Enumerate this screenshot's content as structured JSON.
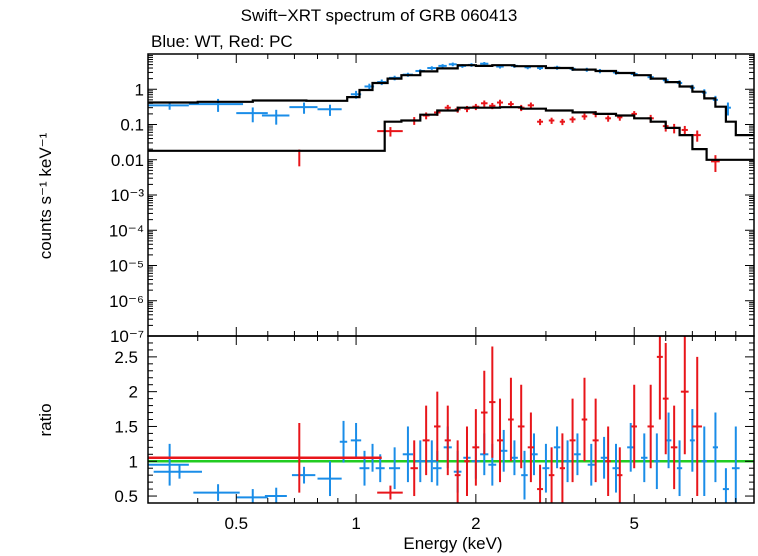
{
  "chart_data": [
    {
      "type": "scatter",
      "panel": "spectrum",
      "title": "Swift−XRT spectrum of GRB 060413",
      "subtitle": "Blue: WT, Red: PC",
      "xlabel": "Energy (keV)",
      "ylabel": "counts s⁻¹ keV⁻¹",
      "xscale": "log",
      "yscale": "log",
      "xlim": [
        0.3,
        10.0
      ],
      "ylim": [
        1e-07,
        10
      ],
      "x_ticks": [
        "0.5",
        "1",
        "2",
        "5"
      ],
      "y_ticks": [
        "1",
        "0.1",
        "0.01",
        "10⁻³",
        "10⁻⁴",
        "10⁻⁵",
        "10⁻⁶",
        "10⁻⁷"
      ],
      "series": [
        {
          "name": "WT",
          "color": "#1a8de8",
          "points": [
            [
              0.34,
              0.35
            ],
            [
              0.45,
              0.38
            ],
            [
              0.55,
              0.21
            ],
            [
              0.63,
              0.18
            ],
            [
              0.74,
              0.31
            ],
            [
              0.86,
              0.27
            ],
            [
              1.0,
              0.72
            ],
            [
              1.08,
              1.2
            ],
            [
              1.16,
              1.6
            ],
            [
              1.25,
              2.1
            ],
            [
              1.35,
              2.6
            ],
            [
              1.45,
              3.3
            ],
            [
              1.55,
              4.0
            ],
            [
              1.65,
              4.6
            ],
            [
              1.75,
              5.1
            ],
            [
              1.85,
              4.6
            ],
            [
              1.95,
              4.9
            ],
            [
              2.1,
              5.3
            ],
            [
              2.3,
              4.4
            ],
            [
              2.5,
              4.6
            ],
            [
              2.7,
              4.2
            ],
            [
              2.9,
              4.0
            ],
            [
              3.2,
              4.1
            ],
            [
              3.5,
              3.8
            ],
            [
              3.8,
              3.6
            ],
            [
              4.1,
              3.3
            ],
            [
              4.5,
              3.0
            ],
            [
              5.0,
              2.7
            ],
            [
              5.5,
              2.2
            ],
            [
              6.0,
              1.8
            ],
            [
              6.5,
              1.5
            ],
            [
              7.0,
              1.1
            ],
            [
              7.5,
              0.8
            ],
            [
              8.0,
              0.5
            ],
            [
              8.6,
              0.3
            ]
          ],
          "xerr": [
            0.04,
            0.07,
            0.05,
            0.05,
            0.06,
            0.06,
            0.03,
            0.03,
            0.03,
            0.04,
            0.04,
            0.04,
            0.04,
            0.04,
            0.04,
            0.04,
            0.04,
            0.05,
            0.05,
            0.05,
            0.05,
            0.05,
            0.06,
            0.06,
            0.06,
            0.07,
            0.08,
            0.1,
            0.1,
            0.1,
            0.1,
            0.1,
            0.1,
            0.12,
            0.15
          ],
          "yerr_frac": [
            0.25,
            0.4,
            0.45,
            0.45,
            0.35,
            0.35,
            0.25,
            0.2,
            0.18,
            0.15,
            0.13,
            0.12,
            0.12,
            0.12,
            0.12,
            0.12,
            0.12,
            0.12,
            0.12,
            0.12,
            0.12,
            0.12,
            0.13,
            0.13,
            0.13,
            0.14,
            0.14,
            0.15,
            0.16,
            0.18,
            0.2,
            0.22,
            0.25,
            0.3,
            0.4
          ]
        },
        {
          "name": "PC",
          "color": "#e8151a",
          "points": [
            [
              0.72,
              0.013
            ],
            [
              1.22,
              0.065
            ],
            [
              1.4,
              0.13
            ],
            [
              1.5,
              0.18
            ],
            [
              1.6,
              0.22
            ],
            [
              1.7,
              0.3
            ],
            [
              1.8,
              0.27
            ],
            [
              1.9,
              0.28
            ],
            [
              2.0,
              0.32
            ],
            [
              2.1,
              0.4
            ],
            [
              2.2,
              0.34
            ],
            [
              2.3,
              0.42
            ],
            [
              2.45,
              0.38
            ],
            [
              2.6,
              0.3
            ],
            [
              2.75,
              0.35
            ],
            [
              2.9,
              0.12
            ],
            [
              3.1,
              0.13
            ],
            [
              3.3,
              0.12
            ],
            [
              3.5,
              0.14
            ],
            [
              3.75,
              0.17
            ],
            [
              4.0,
              0.2
            ],
            [
              4.3,
              0.15
            ],
            [
              4.6,
              0.16
            ],
            [
              5.0,
              0.2
            ],
            [
              5.5,
              0.15
            ],
            [
              6.0,
              0.09
            ],
            [
              6.3,
              0.08
            ],
            [
              6.7,
              0.07
            ],
            [
              7.2,
              0.05
            ],
            [
              8.0,
              0.009
            ]
          ],
          "xerr": [
            0.0,
            0.09,
            0.03,
            0.03,
            0.03,
            0.03,
            0.03,
            0.03,
            0.04,
            0.04,
            0.04,
            0.04,
            0.04,
            0.05,
            0.05,
            0.05,
            0.05,
            0.05,
            0.06,
            0.06,
            0.07,
            0.07,
            0.07,
            0.08,
            0.1,
            0.1,
            0.1,
            0.12,
            0.15,
            0.2
          ],
          "yerr_frac": [
            0.5,
            0.3,
            0.25,
            0.22,
            0.2,
            0.2,
            0.2,
            0.2,
            0.2,
            0.2,
            0.2,
            0.2,
            0.2,
            0.2,
            0.2,
            0.2,
            0.2,
            0.2,
            0.2,
            0.2,
            0.2,
            0.2,
            0.2,
            0.2,
            0.25,
            0.3,
            0.3,
            0.3,
            0.35,
            0.5
          ]
        },
        {
          "name": "WT model",
          "color": "#000000",
          "steps": [
            [
              0.3,
              0.42
            ],
            [
              0.4,
              0.44
            ],
            [
              0.55,
              0.48
            ],
            [
              0.75,
              0.47
            ],
            [
              0.95,
              0.6
            ],
            [
              1.02,
              0.95
            ],
            [
              1.1,
              1.5
            ],
            [
              1.2,
              2.0
            ],
            [
              1.3,
              2.5
            ],
            [
              1.45,
              3.2
            ],
            [
              1.6,
              3.9
            ],
            [
              1.8,
              4.8
            ],
            [
              2.0,
              4.6
            ],
            [
              2.2,
              4.8
            ],
            [
              2.5,
              4.5
            ],
            [
              3.0,
              4.0
            ],
            [
              3.5,
              3.6
            ],
            [
              4.0,
              3.3
            ],
            [
              4.5,
              2.9
            ],
            [
              5.0,
              2.5
            ],
            [
              5.5,
              2.0
            ],
            [
              6.0,
              1.6
            ],
            [
              6.5,
              1.2
            ],
            [
              7.0,
              0.85
            ],
            [
              7.5,
              0.55
            ],
            [
              8.0,
              0.32
            ],
            [
              8.5,
              0.12
            ],
            [
              9.0,
              0.05
            ],
            [
              10.0,
              0.05
            ]
          ]
        },
        {
          "name": "PC model",
          "color": "#000000",
          "steps": [
            [
              0.3,
              0.018
            ],
            [
              1.16,
              0.018
            ],
            [
              1.18,
              0.12
            ],
            [
              1.3,
              0.13
            ],
            [
              1.45,
              0.19
            ],
            [
              1.6,
              0.25
            ],
            [
              1.8,
              0.3
            ],
            [
              2.0,
              0.3
            ],
            [
              2.3,
              0.31
            ],
            [
              2.6,
              0.28
            ],
            [
              3.0,
              0.25
            ],
            [
              3.5,
              0.22
            ],
            [
              4.0,
              0.2
            ],
            [
              4.5,
              0.18
            ],
            [
              5.0,
              0.15
            ],
            [
              5.5,
              0.12
            ],
            [
              6.0,
              0.08
            ],
            [
              6.5,
              0.05
            ],
            [
              7.0,
              0.02
            ],
            [
              7.6,
              0.01
            ],
            [
              9.0,
              0.01
            ]
          ]
        }
      ]
    },
    {
      "type": "scatter",
      "panel": "ratio",
      "xlabel": "Energy (keV)",
      "ylabel": "ratio",
      "xscale": "log",
      "xlim": [
        0.3,
        10.0
      ],
      "ylim": [
        0.4,
        2.8
      ],
      "x_ticks": [
        "0.5",
        "1",
        "2",
        "5"
      ],
      "y_ticks": [
        "0.5",
        "1",
        "1.5",
        "2",
        "2.5"
      ],
      "reference_line": {
        "y": 1,
        "color": "#22cc22"
      },
      "series": [
        {
          "name": "WT",
          "color": "#1a8de8",
          "points": [
            [
              0.34,
              0.95
            ],
            [
              0.36,
              0.85
            ],
            [
              0.45,
              0.55
            ],
            [
              0.55,
              0.48
            ],
            [
              0.63,
              0.5
            ],
            [
              0.74,
              0.8
            ],
            [
              0.86,
              0.75
            ],
            [
              0.93,
              1.28
            ],
            [
              1.0,
              1.3
            ],
            [
              1.05,
              0.9
            ],
            [
              1.1,
              1.05
            ],
            [
              1.15,
              0.9
            ],
            [
              1.25,
              0.9
            ],
            [
              1.35,
              1.1
            ],
            [
              1.45,
              1.0
            ],
            [
              1.55,
              1.0
            ],
            [
              1.6,
              0.9
            ],
            [
              1.7,
              1.2
            ],
            [
              1.8,
              0.85
            ],
            [
              1.9,
              1.05
            ],
            [
              2.0,
              1.0
            ],
            [
              2.1,
              1.1
            ],
            [
              2.2,
              0.95
            ],
            [
              2.35,
              1.15
            ],
            [
              2.5,
              1.05
            ],
            [
              2.65,
              0.8
            ],
            [
              2.8,
              1.1
            ],
            [
              3.0,
              0.9
            ],
            [
              3.2,
              1.2
            ],
            [
              3.4,
              1.0
            ],
            [
              3.6,
              1.1
            ],
            [
              3.9,
              0.95
            ],
            [
              4.2,
              1.05
            ],
            [
              4.5,
              0.9
            ],
            [
              4.9,
              1.2
            ],
            [
              5.3,
              1.05
            ],
            [
              5.7,
              1.0
            ],
            [
              6.1,
              1.3
            ],
            [
              6.5,
              0.9
            ],
            [
              7.0,
              1.3
            ],
            [
              7.5,
              1.0
            ],
            [
              8.0,
              1.2
            ],
            [
              8.5,
              0.6
            ],
            [
              9.0,
              0.9
            ]
          ],
          "xerr": [
            0.04,
            0.05,
            0.06,
            0.05,
            0.04,
            0.05,
            0.06,
            0.02,
            0.03,
            0.03,
            0.03,
            0.03,
            0.04,
            0.04,
            0.04,
            0.04,
            0.04,
            0.04,
            0.04,
            0.04,
            0.05,
            0.05,
            0.05,
            0.05,
            0.05,
            0.05,
            0.06,
            0.06,
            0.06,
            0.07,
            0.07,
            0.08,
            0.08,
            0.09,
            0.1,
            0.1,
            0.1,
            0.1,
            0.1,
            0.1,
            0.12,
            0.12,
            0.15,
            0.2
          ],
          "yerr": [
            0.3,
            0.1,
            0.12,
            0.12,
            0.12,
            0.12,
            0.25,
            0.3,
            0.25,
            0.25,
            0.2,
            0.2,
            0.3,
            0.4,
            0.3,
            0.3,
            0.25,
            0.3,
            0.3,
            0.25,
            0.25,
            0.3,
            0.3,
            0.3,
            0.25,
            0.35,
            0.3,
            0.35,
            0.3,
            0.3,
            0.3,
            0.3,
            0.3,
            0.35,
            0.35,
            0.35,
            0.4,
            0.4,
            0.4,
            0.45,
            0.5,
            0.5,
            0.3,
            0.6
          ]
        },
        {
          "name": "PC",
          "color": "#e8151a",
          "points": [
            [
              0.72,
              1.05
            ],
            [
              1.22,
              0.55
            ],
            [
              1.4,
              0.9
            ],
            [
              1.5,
              1.3
            ],
            [
              1.6,
              1.5
            ],
            [
              1.7,
              1.3
            ],
            [
              1.8,
              0.8
            ],
            [
              1.9,
              1.0
            ],
            [
              2.0,
              1.2
            ],
            [
              2.1,
              1.7
            ],
            [
              2.2,
              1.85
            ],
            [
              2.3,
              1.3
            ],
            [
              2.45,
              1.6
            ],
            [
              2.6,
              1.5
            ],
            [
              2.75,
              1.2
            ],
            [
              2.9,
              0.6
            ],
            [
              3.1,
              0.8
            ],
            [
              3.3,
              0.9
            ],
            [
              3.5,
              1.3
            ],
            [
              3.75,
              1.6
            ],
            [
              4.0,
              1.3
            ],
            [
              4.3,
              1.0
            ],
            [
              4.6,
              0.8
            ],
            [
              5.0,
              1.5
            ],
            [
              5.5,
              1.5
            ],
            [
              5.8,
              2.5
            ],
            [
              6.0,
              1.9
            ],
            [
              6.3,
              1.2
            ],
            [
              6.7,
              2.0
            ],
            [
              7.2,
              1.5
            ]
          ],
          "xerr": [
            0.0,
            0.09,
            0.03,
            0.03,
            0.03,
            0.03,
            0.03,
            0.03,
            0.04,
            0.04,
            0.04,
            0.04,
            0.04,
            0.05,
            0.05,
            0.05,
            0.05,
            0.05,
            0.06,
            0.06,
            0.07,
            0.07,
            0.07,
            0.08,
            0.1,
            0.1,
            0.1,
            0.12,
            0.15,
            0.2
          ],
          "yerr": [
            0.5,
            0.1,
            0.4,
            0.5,
            0.5,
            0.5,
            0.5,
            0.5,
            0.55,
            0.6,
            0.8,
            0.6,
            0.6,
            0.6,
            0.5,
            0.35,
            0.4,
            0.5,
            0.6,
            0.6,
            0.6,
            0.5,
            0.4,
            0.6,
            0.6,
            0.9,
            0.8,
            0.6,
            0.9,
            1.0
          ]
        }
      ]
    }
  ]
}
